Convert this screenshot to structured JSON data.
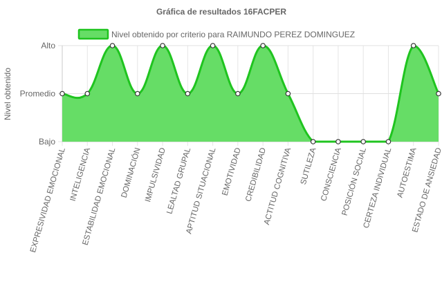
{
  "chart_data": {
    "type": "area",
    "title": "Gráfica de resultados 16FACPER",
    "ylabel": "Nivel obtenido",
    "xlabel": "",
    "y_levels": [
      "Bajo",
      "Promedio",
      "Alto"
    ],
    "ylim": [
      0,
      2
    ],
    "categories": [
      "EXPRESIVIDAD EMOCIONAL",
      "INTELIGENCIA",
      "ESTABILIDAD EMOCIONAL",
      "DOMINACIÓN",
      "IMPULSIVIDAD",
      "LEALTAD GRUPAL",
      "APTITUD SITUACIONAL",
      "EMOTIVIDAD",
      "CREDIBILIDAD",
      "ACTITUD COGNITIVA",
      "SUTILEZA",
      "CONSCIENCIA",
      "POSICIÓN SOCIAL",
      "CERTEZA INDIVIDUAL",
      "AUTOESTIMA",
      "ESTADO DE ANSIEDAD"
    ],
    "series": [
      {
        "name": "Nivel obtenido por criterio para RAIMUNDO PEREZ DOMINGUEZ",
        "values": [
          1,
          1,
          2,
          1,
          2,
          1,
          2,
          1,
          2,
          1,
          0,
          0,
          0,
          0,
          2,
          1
        ],
        "line_color": "#1fc41f",
        "fill_color": "#66dd66"
      }
    ],
    "grid": true,
    "legend_position": "top"
  }
}
